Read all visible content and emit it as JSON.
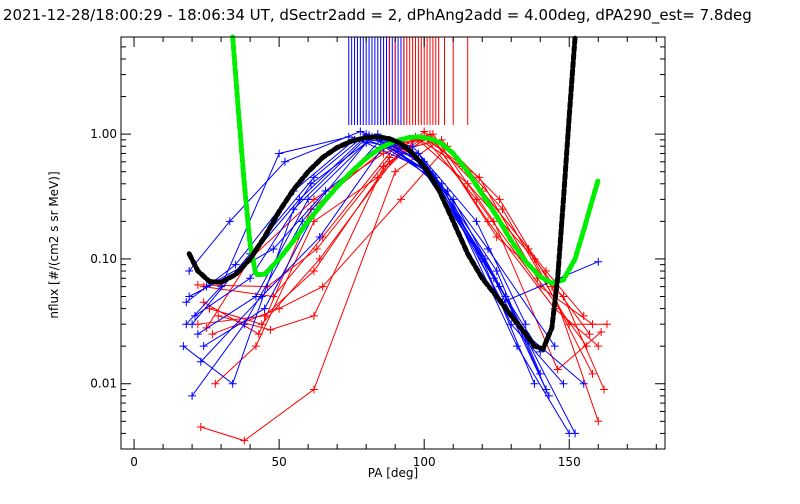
{
  "chart_data": {
    "type": "line",
    "title": "2021-12-28/18:00:29 - 18:06:34 UT, dSectr2add = 2, dPhAng2add = 4.00deg, dPA290_est=   7.8deg",
    "xlabel": "PA [deg]",
    "ylabel": "nflux [#/(cm2 s sr MeV)]",
    "xlim": [
      -4.5,
      183
    ],
    "ylim": [
      0.003,
      6
    ],
    "yscale": "log",
    "xticks": [
      0,
      50,
      100,
      150
    ],
    "xtick_labels": [
      "0",
      "50",
      "100",
      "150"
    ],
    "yticks": [
      1,
      0.1,
      0.01
    ],
    "ytick_labels": [
      "1.00",
      "0.10",
      "0.01"
    ],
    "colors": {
      "blue": "#0000ff",
      "red": "#ff0000",
      "green": "#00ee00",
      "black": "#000000"
    },
    "blue_series": [
      [
        [
          20,
          0.03
        ],
        [
          40,
          0.11
        ],
        [
          62,
          0.45
        ],
        [
          80,
          1.0
        ],
        [
          100,
          0.6
        ],
        [
          125,
          0.08
        ],
        [
          140,
          0.012
        ]
      ],
      [
        [
          18,
          0.045
        ],
        [
          35,
          0.09
        ],
        [
          55,
          0.35
        ],
        [
          76,
          0.9
        ],
        [
          95,
          0.75
        ],
        [
          120,
          0.1
        ],
        [
          138,
          0.01
        ]
      ],
      [
        [
          22,
          0.025
        ],
        [
          42,
          0.05
        ],
        [
          60,
          0.3
        ],
        [
          82,
          0.95
        ],
        [
          104,
          0.45
        ],
        [
          128,
          0.05
        ],
        [
          142,
          0.009
        ]
      ],
      [
        [
          19,
          0.08
        ],
        [
          33,
          0.2
        ],
        [
          52,
          0.6
        ],
        [
          78,
          1.05
        ],
        [
          98,
          0.7
        ],
        [
          122,
          0.12
        ],
        [
          145,
          0.02
        ]
      ],
      [
        [
          24,
          0.02
        ],
        [
          45,
          0.04
        ],
        [
          63,
          0.25
        ],
        [
          85,
          0.9
        ],
        [
          108,
          0.35
        ],
        [
          130,
          0.03
        ],
        [
          148,
          0.01
        ]
      ],
      [
        [
          20,
          0.008
        ],
        [
          38,
          0.03
        ],
        [
          58,
          0.2
        ],
        [
          80,
          0.85
        ],
        [
          102,
          0.5
        ],
        [
          126,
          0.06
        ],
        [
          152,
          0.004
        ]
      ],
      [
        [
          21,
          0.035
        ],
        [
          40,
          0.07
        ],
        [
          61,
          0.4
        ],
        [
          84,
          1.0
        ],
        [
          100,
          0.55
        ],
        [
          124,
          0.07
        ],
        [
          140,
          0.018
        ]
      ],
      [
        [
          18,
          0.03
        ],
        [
          30,
          0.06
        ],
        [
          50,
          0.7
        ],
        [
          74,
          0.95
        ],
        [
          96,
          0.8
        ],
        [
          118,
          0.2
        ],
        [
          135,
          0.03
        ]
      ],
      [
        [
          23,
          0.015
        ],
        [
          44,
          0.05
        ],
        [
          64,
          0.15
        ],
        [
          86,
          0.8
        ],
        [
          106,
          0.4
        ],
        [
          132,
          0.02
        ],
        [
          150,
          0.004
        ]
      ],
      [
        [
          25,
          0.06
        ],
        [
          48,
          0.12
        ],
        [
          66,
          0.35
        ],
        [
          88,
          0.85
        ],
        [
          110,
          0.3
        ],
        [
          135,
          0.025
        ],
        [
          155,
          0.01
        ]
      ],
      [
        [
          19,
          0.05
        ],
        [
          36,
          0.08
        ],
        [
          57,
          0.3
        ],
        [
          79,
          0.92
        ],
        [
          99,
          0.62
        ],
        [
          121,
          0.1
        ],
        [
          143,
          0.008
        ]
      ],
      [
        [
          17,
          0.02
        ],
        [
          34,
          0.01
        ],
        [
          55,
          0.25
        ],
        [
          81,
          0.98
        ],
        [
          103,
          0.48
        ],
        [
          127,
          0.045
        ],
        [
          160,
          0.095
        ]
      ]
    ],
    "red_series": [
      [
        [
          22,
          0.03
        ],
        [
          45,
          0.035
        ],
        [
          62,
          0.08
        ],
        [
          88,
          0.6
        ],
        [
          100,
          0.95
        ],
        [
          118,
          0.3
        ],
        [
          140,
          0.06
        ],
        [
          158,
          0.03
        ]
      ],
      [
        [
          24,
          0.06
        ],
        [
          48,
          0.05
        ],
        [
          65,
          0.15
        ],
        [
          90,
          0.8
        ],
        [
          102,
          1.0
        ],
        [
          122,
          0.2
        ],
        [
          145,
          0.04
        ],
        [
          160,
          0.02
        ]
      ],
      [
        [
          25,
          0.028
        ],
        [
          40,
          0.1
        ],
        [
          62,
          0.3
        ],
        [
          86,
          0.7
        ],
        [
          98,
          0.9
        ],
        [
          115,
          0.4
        ],
        [
          138,
          0.1
        ],
        [
          157,
          0.025
        ]
      ],
      [
        [
          23,
          0.0045
        ],
        [
          38,
          0.0035
        ],
        [
          62,
          0.009
        ],
        [
          90,
          0.5
        ],
        [
          104,
          0.85
        ],
        [
          125,
          0.15
        ],
        [
          148,
          0.05
        ],
        [
          162,
          0.009
        ]
      ],
      [
        [
          26,
          0.04
        ],
        [
          44,
          0.03
        ],
        [
          64,
          0.1
        ],
        [
          92,
          0.75
        ],
        [
          106,
          0.9
        ],
        [
          127,
          0.25
        ],
        [
          150,
          0.03
        ],
        [
          163,
          0.03
        ]
      ],
      [
        [
          28,
          0.01
        ],
        [
          42,
          0.02
        ],
        [
          62,
          0.2
        ],
        [
          84,
          0.45
        ],
        [
          100,
          1.05
        ],
        [
          120,
          0.35
        ],
        [
          142,
          0.08
        ],
        [
          155,
          0.035
        ]
      ],
      [
        [
          22,
          0.062
        ],
        [
          46,
          0.06
        ],
        [
          63,
          0.12
        ],
        [
          88,
          0.65
        ],
        [
          97,
          0.95
        ],
        [
          113,
          0.55
        ],
        [
          136,
          0.12
        ],
        [
          158,
          0.012
        ]
      ],
      [
        [
          27,
          0.025
        ],
        [
          50,
          0.04
        ],
        [
          65,
          0.06
        ],
        [
          92,
          0.3
        ],
        [
          108,
          0.8
        ],
        [
          126,
          0.3
        ],
        [
          144,
          0.06
        ],
        [
          160,
          0.005
        ]
      ],
      [
        [
          24,
          0.045
        ],
        [
          43,
          0.025
        ],
        [
          61,
          0.25
        ],
        [
          89,
          0.85
        ],
        [
          101,
          0.9
        ],
        [
          119,
          0.45
        ],
        [
          139,
          0.07
        ],
        [
          156,
          0.02
        ]
      ],
      [
        [
          29,
          0.035
        ],
        [
          47,
          0.027
        ],
        [
          62,
          0.035
        ],
        [
          86,
          0.55
        ],
        [
          103,
          1.0
        ],
        [
          124,
          0.2
        ],
        [
          146,
          0.013
        ],
        [
          161,
          0.026
        ]
      ]
    ],
    "blue_ticks": [
      74,
      75,
      76,
      77,
      78,
      79,
      80,
      81,
      82,
      83,
      84,
      85,
      86,
      87,
      88,
      89,
      90,
      91,
      92,
      93
    ],
    "red_ticks": [
      88,
      90,
      93,
      94,
      95,
      96,
      97,
      98,
      99,
      100,
      101,
      102,
      103,
      104,
      105,
      107,
      110,
      115
    ],
    "black_curve": [
      [
        19,
        0.11
      ],
      [
        22,
        0.08
      ],
      [
        26,
        0.066
      ],
      [
        30,
        0.065
      ],
      [
        35,
        0.075
      ],
      [
        40,
        0.1
      ],
      [
        45,
        0.15
      ],
      [
        50,
        0.24
      ],
      [
        55,
        0.36
      ],
      [
        60,
        0.5
      ],
      [
        65,
        0.65
      ],
      [
        70,
        0.78
      ],
      [
        75,
        0.88
      ],
      [
        80,
        0.94
      ],
      [
        84,
        0.95
      ],
      [
        88,
        0.92
      ],
      [
        92,
        0.84
      ],
      [
        96,
        0.7
      ],
      [
        100,
        0.55
      ],
      [
        105,
        0.36
      ],
      [
        110,
        0.2
      ],
      [
        115,
        0.11
      ],
      [
        120,
        0.07
      ],
      [
        125,
        0.05
      ],
      [
        130,
        0.035
      ],
      [
        135,
        0.025
      ],
      [
        138,
        0.02
      ],
      [
        141,
        0.019
      ],
      [
        144,
        0.028
      ],
      [
        146,
        0.07
      ],
      [
        148,
        0.3
      ],
      [
        150,
        1.4
      ],
      [
        152,
        6
      ]
    ],
    "green_curve": [
      [
        34,
        6
      ],
      [
        36,
        1.5
      ],
      [
        38,
        0.4
      ],
      [
        40,
        0.13
      ],
      [
        42,
        0.075
      ],
      [
        45,
        0.075
      ],
      [
        50,
        0.1
      ],
      [
        55,
        0.14
      ],
      [
        60,
        0.2
      ],
      [
        65,
        0.28
      ],
      [
        70,
        0.38
      ],
      [
        75,
        0.5
      ],
      [
        80,
        0.64
      ],
      [
        85,
        0.78
      ],
      [
        90,
        0.88
      ],
      [
        95,
        0.94
      ],
      [
        98,
        0.95
      ],
      [
        102,
        0.92
      ],
      [
        106,
        0.84
      ],
      [
        110,
        0.7
      ],
      [
        115,
        0.5
      ],
      [
        120,
        0.33
      ],
      [
        125,
        0.22
      ],
      [
        130,
        0.14
      ],
      [
        135,
        0.095
      ],
      [
        140,
        0.072
      ],
      [
        144,
        0.064
      ],
      [
        148,
        0.068
      ],
      [
        152,
        0.1
      ],
      [
        155,
        0.17
      ],
      [
        158,
        0.3
      ],
      [
        160,
        0.43
      ]
    ]
  }
}
